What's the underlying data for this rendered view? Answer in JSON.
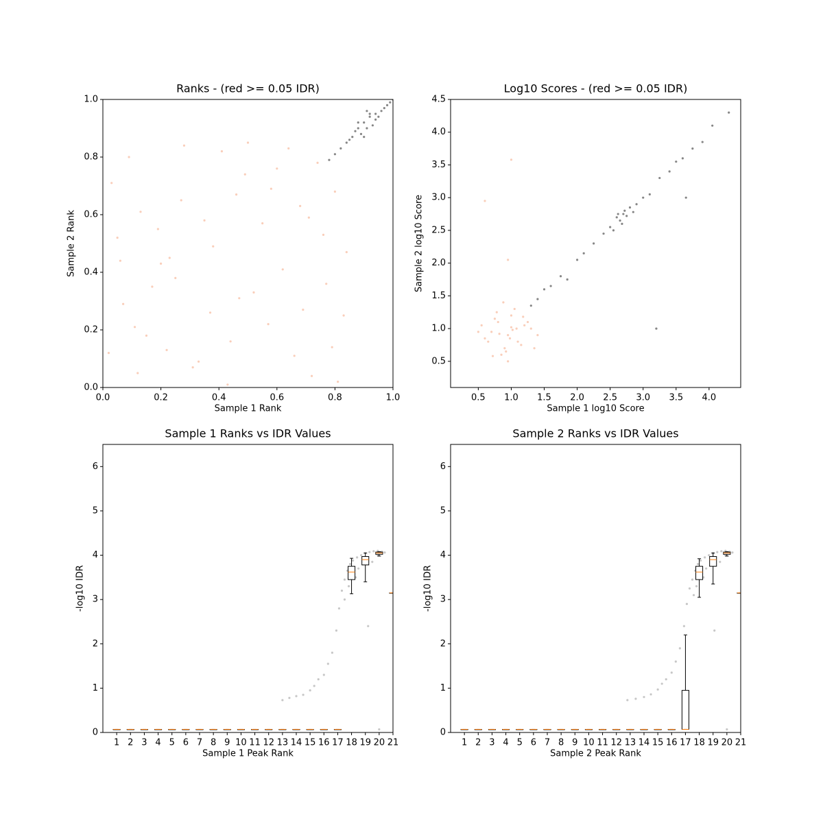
{
  "chart_data": [
    {
      "type": "scatter",
      "title": "Ranks - (red >= 0.05 IDR)",
      "xlabel": "Sample 1 Rank",
      "ylabel": "Sample 2 Rank",
      "xlim": [
        0,
        1
      ],
      "ylim": [
        0,
        1
      ],
      "xticks": [
        {
          "value": 0,
          "label": "0.0"
        },
        0.2,
        0.4,
        0.6,
        0.8,
        {
          "value": 1,
          "label": "1.0"
        }
      ],
      "yticks": [
        {
          "value": 0,
          "label": "0.0"
        },
        0.2,
        0.4,
        0.6,
        0.8,
        {
          "value": 1,
          "label": "1.0"
        }
      ],
      "series": [
        {
          "color": "#f4a582",
          "x": [
            0.03,
            0.12,
            0.25,
            0.41,
            0.57,
            0.68,
            0.79,
            0.84,
            0.07,
            0.19,
            0.33,
            0.46,
            0.62,
            0.74,
            0.15,
            0.28,
            0.52,
            0.81,
            0.05,
            0.37,
            0.49,
            0.66,
            0.71,
            0.23,
            0.09,
            0.44,
            0.58,
            0.77,
            0.31,
            0.13,
            0.83,
            0.2,
            0.55,
            0.64,
            0.38,
            0.02,
            0.47,
            0.72,
            0.27,
            0.6,
            0.11,
            0.35,
            0.5,
            0.8,
            0.17,
            0.43,
            0.69,
            0.22,
            0.76,
            0.06
          ],
          "values": [
            0.71,
            0.05,
            0.38,
            0.82,
            0.22,
            0.63,
            0.14,
            0.47,
            0.29,
            0.55,
            0.09,
            0.67,
            0.41,
            0.78,
            0.18,
            0.84,
            0.33,
            0.02,
            0.52,
            0.26,
            0.74,
            0.11,
            0.59,
            0.45,
            0.8,
            0.16,
            0.69,
            0.36,
            0.07,
            0.61,
            0.25,
            0.43,
            0.57,
            0.83,
            0.49,
            0.12,
            0.31,
            0.04,
            0.65,
            0.76,
            0.21,
            0.58,
            0.85,
            0.68,
            0.35,
            0.01,
            0.27,
            0.13,
            0.53,
            0.44
          ]
        },
        {
          "color": "#222222",
          "x": [
            0.78,
            0.8,
            0.82,
            0.84,
            0.85,
            0.86,
            0.87,
            0.88,
            0.89,
            0.9,
            0.91,
            0.92,
            0.93,
            0.94,
            0.95,
            0.96,
            0.97,
            0.98,
            0.99,
            1.0,
            0.88,
            0.9,
            0.92,
            0.94,
            0.91
          ],
          "values": [
            0.79,
            0.81,
            0.83,
            0.85,
            0.86,
            0.87,
            0.89,
            0.9,
            0.88,
            0.92,
            0.9,
            0.94,
            0.91,
            0.95,
            0.94,
            0.96,
            0.97,
            0.98,
            0.99,
            1.0,
            0.92,
            0.87,
            0.95,
            0.93,
            0.96
          ]
        }
      ]
    },
    {
      "type": "scatter",
      "title": "Log10 Scores - (red >= 0.05 IDR)",
      "xlabel": "Sample 1 log10 Score",
      "ylabel": "Sample 2 log10 Score",
      "xlim": [
        0.08,
        4.48
      ],
      "ylim": [
        0.1,
        4.5
      ],
      "xticks": [
        0.5,
        {
          "value": 1,
          "label": "1.0"
        },
        1.5,
        {
          "value": 2,
          "label": "2.0"
        },
        2.5,
        {
          "value": 3,
          "label": "3.0"
        },
        3.5,
        {
          "value": 4,
          "label": "4.0"
        }
      ],
      "yticks": [
        0.5,
        {
          "value": 1,
          "label": "1.0"
        },
        1.5,
        {
          "value": 2,
          "label": "2.0"
        },
        2.5,
        {
          "value": 3,
          "label": "3.0"
        },
        3.5,
        {
          "value": 4,
          "label": "4.0"
        },
        4.5
      ],
      "series": [
        {
          "color": "#f4a582",
          "x": [
            0.95,
            0.8,
            1.1,
            0.7,
            1.2,
            0.9,
            1.0,
            0.6,
            1.3,
            0.85,
            1.05,
            0.75,
            1.15,
            0.5,
            1.4,
            0.95,
            0.88,
            1.02,
            0.65,
            1.25,
            0.92,
            0.78,
            1.08,
            0.98,
            0.55,
            1.35,
            0.82,
            1.18,
            0.72,
            1.0,
            0.6,
            1.0,
            0.95
          ],
          "values": [
            0.9,
            1.1,
            0.8,
            0.95,
            1.05,
            0.7,
            1.2,
            0.85,
            1.0,
            0.6,
            1.3,
            1.15,
            0.75,
            0.95,
            0.9,
            0.5,
            1.4,
            0.98,
            0.8,
            1.1,
            0.65,
            1.25,
            1.0,
            0.85,
            1.05,
            0.7,
            0.92,
            1.18,
            0.58,
            1.02,
            2.95,
            3.58,
            2.05
          ]
        },
        {
          "color": "#222222",
          "x": [
            1.3,
            1.4,
            1.5,
            1.6,
            1.75,
            1.85,
            2.0,
            2.1,
            2.25,
            2.4,
            2.5,
            2.55,
            2.6,
            2.65,
            2.7,
            2.72,
            2.75,
            2.8,
            2.85,
            2.9,
            3.0,
            3.1,
            3.25,
            3.4,
            3.5,
            3.6,
            3.75,
            3.9,
            4.05,
            4.3,
            2.68,
            2.62,
            3.65,
            3.2
          ],
          "values": [
            1.35,
            1.45,
            1.6,
            1.65,
            1.8,
            1.75,
            2.05,
            2.15,
            2.3,
            2.45,
            2.55,
            2.5,
            2.7,
            2.65,
            2.75,
            2.8,
            2.72,
            2.85,
            2.78,
            2.9,
            3.0,
            3.05,
            3.3,
            3.4,
            3.55,
            3.6,
            3.75,
            3.85,
            4.1,
            4.3,
            2.6,
            2.75,
            3.0,
            1.0
          ]
        }
      ]
    },
    {
      "type": "box",
      "title": "Sample 1 Ranks vs IDR Values",
      "xlabel": "Sample 1 Peak Rank",
      "ylabel": "-log10 IDR",
      "xlim": [
        0,
        21
      ],
      "ylim": [
        0,
        6.5
      ],
      "xticks": [
        1,
        2,
        3,
        4,
        5,
        6,
        7,
        8,
        9,
        10,
        11,
        12,
        13,
        14,
        15,
        16,
        17,
        18,
        19,
        20,
        21
      ],
      "yticks": [
        0,
        1,
        2,
        3,
        4,
        5,
        6
      ],
      "boxes": [
        {
          "whislo": 0.07,
          "q1": 0.07,
          "med": 0.07,
          "q3": 0.07,
          "whishi": 0.07
        },
        {
          "whislo": 0.07,
          "q1": 0.07,
          "med": 0.07,
          "q3": 0.07,
          "whishi": 0.07
        },
        {
          "whislo": 0.07,
          "q1": 0.07,
          "med": 0.07,
          "q3": 0.07,
          "whishi": 0.07
        },
        {
          "whislo": 0.07,
          "q1": 0.07,
          "med": 0.07,
          "q3": 0.07,
          "whishi": 0.07
        },
        {
          "whislo": 0.07,
          "q1": 0.07,
          "med": 0.07,
          "q3": 0.07,
          "whishi": 0.07
        },
        {
          "whislo": 0.07,
          "q1": 0.07,
          "med": 0.07,
          "q3": 0.07,
          "whishi": 0.07
        },
        {
          "whislo": 0.07,
          "q1": 0.07,
          "med": 0.07,
          "q3": 0.07,
          "whishi": 0.07
        },
        {
          "whislo": 0.07,
          "q1": 0.07,
          "med": 0.07,
          "q3": 0.07,
          "whishi": 0.07
        },
        {
          "whislo": 0.07,
          "q1": 0.07,
          "med": 0.07,
          "q3": 0.07,
          "whishi": 0.07
        },
        {
          "whislo": 0.07,
          "q1": 0.07,
          "med": 0.07,
          "q3": 0.07,
          "whishi": 0.07
        },
        {
          "whislo": 0.07,
          "q1": 0.07,
          "med": 0.07,
          "q3": 0.07,
          "whishi": 0.07
        },
        {
          "whislo": 0.07,
          "q1": 0.07,
          "med": 0.07,
          "q3": 0.07,
          "whishi": 0.07
        },
        {
          "whislo": 0.07,
          "q1": 0.07,
          "med": 0.07,
          "q3": 0.07,
          "whishi": 0.07
        },
        {
          "whislo": 0.07,
          "q1": 0.07,
          "med": 0.07,
          "q3": 0.07,
          "whishi": 0.07
        },
        {
          "whislo": 0.07,
          "q1": 0.07,
          "med": 0.07,
          "q3": 0.07,
          "whishi": 0.07
        },
        {
          "whislo": 0.07,
          "q1": 0.07,
          "med": 0.07,
          "q3": 0.07,
          "whishi": 0.07
        },
        {
          "whislo": 0.07,
          "q1": 0.07,
          "med": 0.07,
          "q3": 0.07,
          "whishi": 0.07
        },
        {
          "whislo": 3.13,
          "q1": 3.45,
          "med": 3.62,
          "q3": 3.75,
          "whishi": 3.93
        },
        {
          "whislo": 3.4,
          "q1": 3.78,
          "med": 3.9,
          "q3": 3.97,
          "whishi": 4.05
        },
        {
          "whislo": 3.98,
          "q1": 4.02,
          "med": 4.05,
          "q3": 4.07,
          "whishi": 4.08
        },
        {
          "whislo": 3.15,
          "q1": 3.15,
          "med": 3.15,
          "q3": 3.15,
          "whishi": 3.15
        }
      ],
      "series": [
        {
          "color": "#999999",
          "x": [
            13,
            13.5,
            14,
            14.5,
            15,
            15.3,
            15.6,
            16,
            16.3,
            16.6,
            16.9,
            17.1,
            17.3,
            17.5,
            17.7,
            17.9,
            18.1,
            18.4,
            18.7,
            19,
            19.3,
            19.6,
            19.9,
            20.2,
            18.3,
            17.8,
            18.5,
            19.5,
            19.9,
            20.4,
            17.5,
            19.2,
            20
          ],
          "values": [
            0.73,
            0.78,
            0.82,
            0.85,
            0.95,
            1.05,
            1.2,
            1.3,
            1.55,
            1.8,
            2.3,
            2.8,
            3.2,
            3.45,
            3.65,
            3.8,
            3.88,
            3.95,
            4.0,
            4.05,
            4.07,
            4.09,
            4.1,
            4.08,
            3.5,
            3.3,
            3.7,
            3.85,
            4.0,
            4.06,
            3.0,
            2.4,
            0.07
          ]
        }
      ]
    },
    {
      "type": "box",
      "title": "Sample 2 Ranks vs IDR Values",
      "xlabel": "Sample 2 Peak Rank",
      "ylabel": "-log10 IDR",
      "xlim": [
        0,
        21
      ],
      "ylim": [
        0,
        6.5
      ],
      "xticks": [
        1,
        2,
        3,
        4,
        5,
        6,
        7,
        8,
        9,
        10,
        11,
        12,
        13,
        14,
        15,
        16,
        17,
        18,
        19,
        20,
        21
      ],
      "yticks": [
        0,
        1,
        2,
        3,
        4,
        5,
        6
      ],
      "boxes": [
        {
          "whislo": 0.07,
          "q1": 0.07,
          "med": 0.07,
          "q3": 0.07,
          "whishi": 0.07
        },
        {
          "whislo": 0.07,
          "q1": 0.07,
          "med": 0.07,
          "q3": 0.07,
          "whishi": 0.07
        },
        {
          "whislo": 0.07,
          "q1": 0.07,
          "med": 0.07,
          "q3": 0.07,
          "whishi": 0.07
        },
        {
          "whislo": 0.07,
          "q1": 0.07,
          "med": 0.07,
          "q3": 0.07,
          "whishi": 0.07
        },
        {
          "whislo": 0.07,
          "q1": 0.07,
          "med": 0.07,
          "q3": 0.07,
          "whishi": 0.07
        },
        {
          "whislo": 0.07,
          "q1": 0.07,
          "med": 0.07,
          "q3": 0.07,
          "whishi": 0.07
        },
        {
          "whislo": 0.07,
          "q1": 0.07,
          "med": 0.07,
          "q3": 0.07,
          "whishi": 0.07
        },
        {
          "whislo": 0.07,
          "q1": 0.07,
          "med": 0.07,
          "q3": 0.07,
          "whishi": 0.07
        },
        {
          "whislo": 0.07,
          "q1": 0.07,
          "med": 0.07,
          "q3": 0.07,
          "whishi": 0.07
        },
        {
          "whislo": 0.07,
          "q1": 0.07,
          "med": 0.07,
          "q3": 0.07,
          "whishi": 0.07
        },
        {
          "whislo": 0.07,
          "q1": 0.07,
          "med": 0.07,
          "q3": 0.07,
          "whishi": 0.07
        },
        {
          "whislo": 0.07,
          "q1": 0.07,
          "med": 0.07,
          "q3": 0.07,
          "whishi": 0.07
        },
        {
          "whislo": 0.07,
          "q1": 0.07,
          "med": 0.07,
          "q3": 0.07,
          "whishi": 0.07
        },
        {
          "whislo": 0.07,
          "q1": 0.07,
          "med": 0.07,
          "q3": 0.07,
          "whishi": 0.07
        },
        {
          "whislo": 0.07,
          "q1": 0.07,
          "med": 0.07,
          "q3": 0.07,
          "whishi": 0.07
        },
        {
          "whislo": 0.07,
          "q1": 0.07,
          "med": 0.07,
          "q3": 0.07,
          "whishi": 0.07
        },
        {
          "whislo": 0.07,
          "q1": 0.07,
          "med": 0.07,
          "q3": 0.95,
          "whishi": 2.2
        },
        {
          "whislo": 3.05,
          "q1": 3.45,
          "med": 3.62,
          "q3": 3.75,
          "whishi": 3.92
        },
        {
          "whislo": 3.35,
          "q1": 3.75,
          "med": 3.9,
          "q3": 3.97,
          "whishi": 4.05
        },
        {
          "whislo": 3.98,
          "q1": 4.02,
          "med": 4.05,
          "q3": 4.07,
          "whishi": 4.08
        },
        {
          "whislo": 3.15,
          "q1": 3.15,
          "med": 3.15,
          "q3": 3.15,
          "whishi": 3.15
        }
      ],
      "series": [
        {
          "color": "#999999",
          "x": [
            12.8,
            13.4,
            14,
            14.5,
            15,
            15.3,
            15.6,
            16,
            16.3,
            16.6,
            16.9,
            17.1,
            17.3,
            17.5,
            17.7,
            17.9,
            18.1,
            18.4,
            18.7,
            19,
            19.3,
            19.6,
            19.9,
            20.2,
            18.3,
            17.8,
            18.5,
            19.5,
            19.9,
            20.4,
            17.6,
            19.1,
            20
          ],
          "values": [
            0.73,
            0.76,
            0.8,
            0.86,
            0.97,
            1.1,
            1.2,
            1.35,
            1.6,
            1.9,
            2.4,
            2.9,
            3.25,
            3.45,
            3.65,
            3.8,
            3.88,
            3.95,
            4.0,
            4.05,
            4.07,
            4.09,
            4.1,
            4.08,
            3.5,
            3.3,
            3.7,
            3.85,
            4.0,
            4.06,
            3.1,
            2.3,
            0.07
          ]
        }
      ]
    }
  ]
}
